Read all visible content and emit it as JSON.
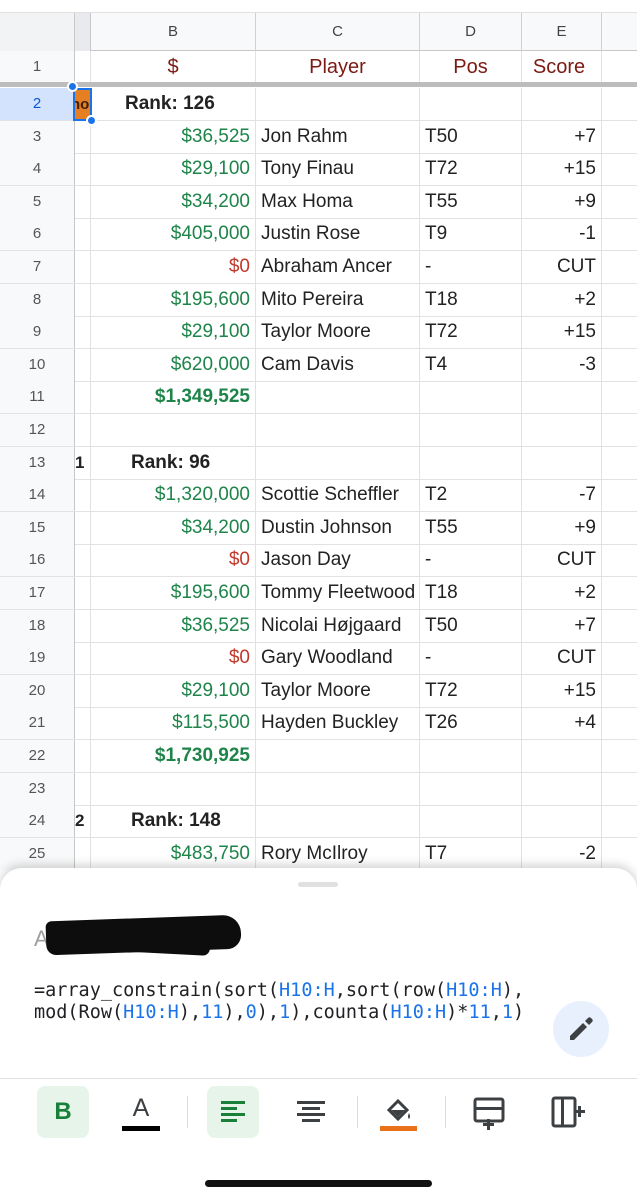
{
  "columns": [
    "B",
    "C",
    "D",
    "E"
  ],
  "header_row": {
    "num": "1",
    "b": "$",
    "c": "Player",
    "d": "Pos",
    "e": "Score"
  },
  "selected_cell_text": "no",
  "rows": [
    {
      "num": "2",
      "a": "",
      "b": "Rank: 126",
      "c": "",
      "d": "",
      "e": ""
    },
    {
      "num": "3",
      "a": "",
      "b": "$36,525",
      "c": "Jon Rahm",
      "d": "T50",
      "e": "+7"
    },
    {
      "num": "4",
      "a": "",
      "b": "$29,100",
      "c": "Tony Finau",
      "d": "T72",
      "e": "+15"
    },
    {
      "num": "5",
      "a": "",
      "b": "$34,200",
      "c": "Max Homa",
      "d": "T55",
      "e": "+9"
    },
    {
      "num": "6",
      "a": "",
      "b": "$405,000",
      "c": "Justin Rose",
      "d": "T9",
      "e": "-1"
    },
    {
      "num": "7",
      "a": "",
      "b": "$0",
      "c": "Abraham Ancer",
      "d": "-",
      "e": "CUT"
    },
    {
      "num": "8",
      "a": "",
      "b": "$195,600",
      "c": "Mito Pereira",
      "d": "T18",
      "e": "+2"
    },
    {
      "num": "9",
      "a": "",
      "b": "$29,100",
      "c": "Taylor Moore",
      "d": "T72",
      "e": "+15"
    },
    {
      "num": "10",
      "a": "",
      "b": "$620,000",
      "c": "Cam Davis",
      "d": "T4",
      "e": "-3"
    },
    {
      "num": "11",
      "a": "",
      "b": "$1,349,525",
      "c": "",
      "d": "",
      "e": ""
    },
    {
      "num": "12",
      "a": "",
      "b": "",
      "c": "",
      "d": "",
      "e": ""
    },
    {
      "num": "13",
      "a": "1",
      "b": "Rank: 96",
      "c": "",
      "d": "",
      "e": ""
    },
    {
      "num": "14",
      "a": "",
      "b": "$1,320,000",
      "c": "Scottie Scheffler",
      "d": "T2",
      "e": "-7"
    },
    {
      "num": "15",
      "a": "",
      "b": "$34,200",
      "c": "Dustin Johnson",
      "d": "T55",
      "e": "+9"
    },
    {
      "num": "16",
      "a": "",
      "b": "$0",
      "c": "Jason Day",
      "d": "-",
      "e": "CUT"
    },
    {
      "num": "17",
      "a": "",
      "b": "$195,600",
      "c": "Tommy Fleetwood",
      "d": "T18",
      "e": "+2"
    },
    {
      "num": "18",
      "a": "",
      "b": "$36,525",
      "c": "Nicolai Højgaard",
      "d": "T50",
      "e": "+7"
    },
    {
      "num": "19",
      "a": "",
      "b": "$0",
      "c": "Gary Woodland",
      "d": "-",
      "e": "CUT"
    },
    {
      "num": "20",
      "a": "",
      "b": "$29,100",
      "c": "Taylor Moore",
      "d": "T72",
      "e": "+15"
    },
    {
      "num": "21",
      "a": "",
      "b": "$115,500",
      "c": "Hayden Buckley",
      "d": "T26",
      "e": "+4"
    },
    {
      "num": "22",
      "a": "",
      "b": "$1,730,925",
      "c": "",
      "d": "",
      "e": ""
    },
    {
      "num": "23",
      "a": "",
      "b": "",
      "c": "",
      "d": "",
      "e": ""
    },
    {
      "num": "24",
      "a": "2",
      "b": "Rank: 148",
      "c": "",
      "d": "",
      "e": ""
    },
    {
      "num": "25",
      "a": "",
      "b": "$483,750",
      "c": "Rory McIlroy",
      "d": "T7",
      "e": "-2"
    }
  ],
  "formula_bar": {
    "cell_ref": "A",
    "formula_parts": [
      {
        "t": "=array_constrain(sort(",
        "k": "fn"
      },
      {
        "t": "H10:H",
        "k": "ref"
      },
      {
        "t": ",sort(row(",
        "k": "fn"
      },
      {
        "t": "H10:H",
        "k": "ref"
      },
      {
        "t": "),mod(Row(",
        "k": "fn"
      },
      {
        "t": "H10:H",
        "k": "ref"
      },
      {
        "t": "),",
        "k": "fn"
      },
      {
        "t": "11",
        "k": "num"
      },
      {
        "t": "),",
        "k": "fn"
      },
      {
        "t": "0",
        "k": "num"
      },
      {
        "t": "),",
        "k": "fn"
      },
      {
        "t": "1",
        "k": "num"
      },
      {
        "t": "),counta(",
        "k": "fn"
      },
      {
        "t": "H10:H",
        "k": "ref"
      },
      {
        "t": ")*",
        "k": "fn"
      },
      {
        "t": "11",
        "k": "num"
      },
      {
        "t": ",",
        "k": "fn"
      },
      {
        "t": "1",
        "k": "num"
      },
      {
        "t": ")",
        "k": "fn"
      }
    ]
  },
  "toolbar": {
    "bold_label": "B",
    "text_color_label": "A",
    "text_color_swatch": "#000000",
    "fill_color_swatch": "#e8711a",
    "accent": "#188038"
  },
  "icons": [
    "bold-icon",
    "text-color-icon",
    "align-left-icon",
    "align-center-icon",
    "fill-color-icon",
    "insert-row-icon",
    "insert-column-icon",
    "edit-pencil-icon"
  ]
}
